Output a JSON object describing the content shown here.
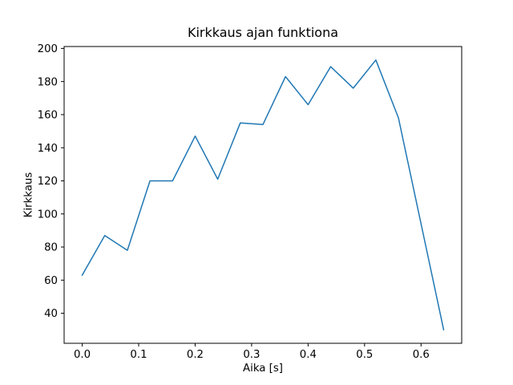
{
  "chart_data": {
    "type": "line",
    "title": "Kirkkaus ajan funktiona",
    "xlabel": "Aika [s]",
    "ylabel": "Kirkkaus",
    "x": [
      0.0,
      0.04,
      0.08,
      0.12,
      0.16,
      0.2,
      0.24,
      0.28,
      0.32,
      0.36,
      0.4,
      0.44,
      0.48,
      0.52,
      0.56,
      0.6,
      0.64
    ],
    "y": [
      63,
      87,
      78,
      120,
      120,
      147,
      121,
      155,
      154,
      183,
      166,
      189,
      176,
      193,
      158,
      94,
      30
    ],
    "x_ticks": {
      "values": [
        0.0,
        0.1,
        0.2,
        0.3,
        0.4,
        0.5,
        0.6
      ],
      "labels": [
        "0.0",
        "0.1",
        "0.2",
        "0.3",
        "0.4",
        "0.5",
        "0.6"
      ]
    },
    "y_ticks": {
      "values": [
        40,
        60,
        80,
        100,
        120,
        140,
        160,
        180,
        200
      ],
      "labels": [
        "40",
        "60",
        "80",
        "100",
        "120",
        "140",
        "160",
        "180",
        "200"
      ]
    },
    "xlim": [
      -0.032,
      0.672
    ],
    "ylim": [
      21.85,
      201.15
    ],
    "grid": false,
    "line_color": "#1f77b4",
    "spine_color": "#000000",
    "text_color": "#000000",
    "background_color": "#ffffff"
  }
}
